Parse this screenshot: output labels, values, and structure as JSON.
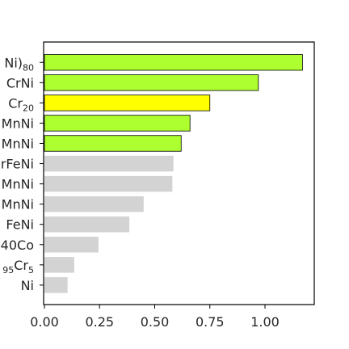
{
  "chart_data": {
    "type": "bar",
    "orientation": "horizontal",
    "title": "",
    "xlabel": "",
    "ylabel": "",
    "xlim": [
      0,
      1.22
    ],
    "xticks": [
      0.0,
      0.25,
      0.5,
      0.75,
      1.0
    ],
    "xtick_labels": [
      "0.00",
      "0.25",
      "0.50",
      "0.75",
      "1.00"
    ],
    "grid": false,
    "legend": "none",
    "categories": [
      {
        "parts": [
          {
            "t": "Ni)"
          },
          {
            "t": "80",
            "sub": true
          }
        ]
      },
      {
        "parts": [
          {
            "t": "CrNi"
          }
        ]
      },
      {
        "parts": [
          {
            "t": "Cr"
          },
          {
            "t": "20",
            "sub": true
          }
        ]
      },
      {
        "parts": [
          {
            "t": "MnNi"
          }
        ]
      },
      {
        "parts": [
          {
            "t": "MnNi"
          }
        ]
      },
      {
        "parts": [
          {
            "t": "rFeNi"
          }
        ]
      },
      {
        "parts": [
          {
            "t": "MnNi"
          }
        ]
      },
      {
        "parts": [
          {
            "t": "MnNi"
          }
        ]
      },
      {
        "parts": [
          {
            "t": "FeNi"
          }
        ]
      },
      {
        "parts": [
          {
            "t": "40Co"
          }
        ]
      },
      {
        "parts": [
          {
            "t": "95",
            "sub": true
          },
          {
            "t": "Cr"
          },
          {
            "t": "5",
            "sub": true
          }
        ]
      },
      {
        "parts": [
          {
            "t": "Ni"
          }
        ]
      }
    ],
    "values": [
      1.17,
      0.97,
      0.75,
      0.66,
      0.62,
      0.585,
      0.58,
      0.45,
      0.385,
      0.245,
      0.135,
      0.105
    ],
    "bar_colors": [
      "#adff2f",
      "#adff2f",
      "#ffff00",
      "#adff2f",
      "#adff2f",
      "#d3d3d3",
      "#d3d3d3",
      "#d3d3d3",
      "#d3d3d3",
      "#d3d3d3",
      "#d3d3d3",
      "#d3d3d3"
    ],
    "bar_edge": [
      true,
      true,
      true,
      true,
      true,
      false,
      false,
      false,
      false,
      false,
      false,
      false
    ]
  }
}
